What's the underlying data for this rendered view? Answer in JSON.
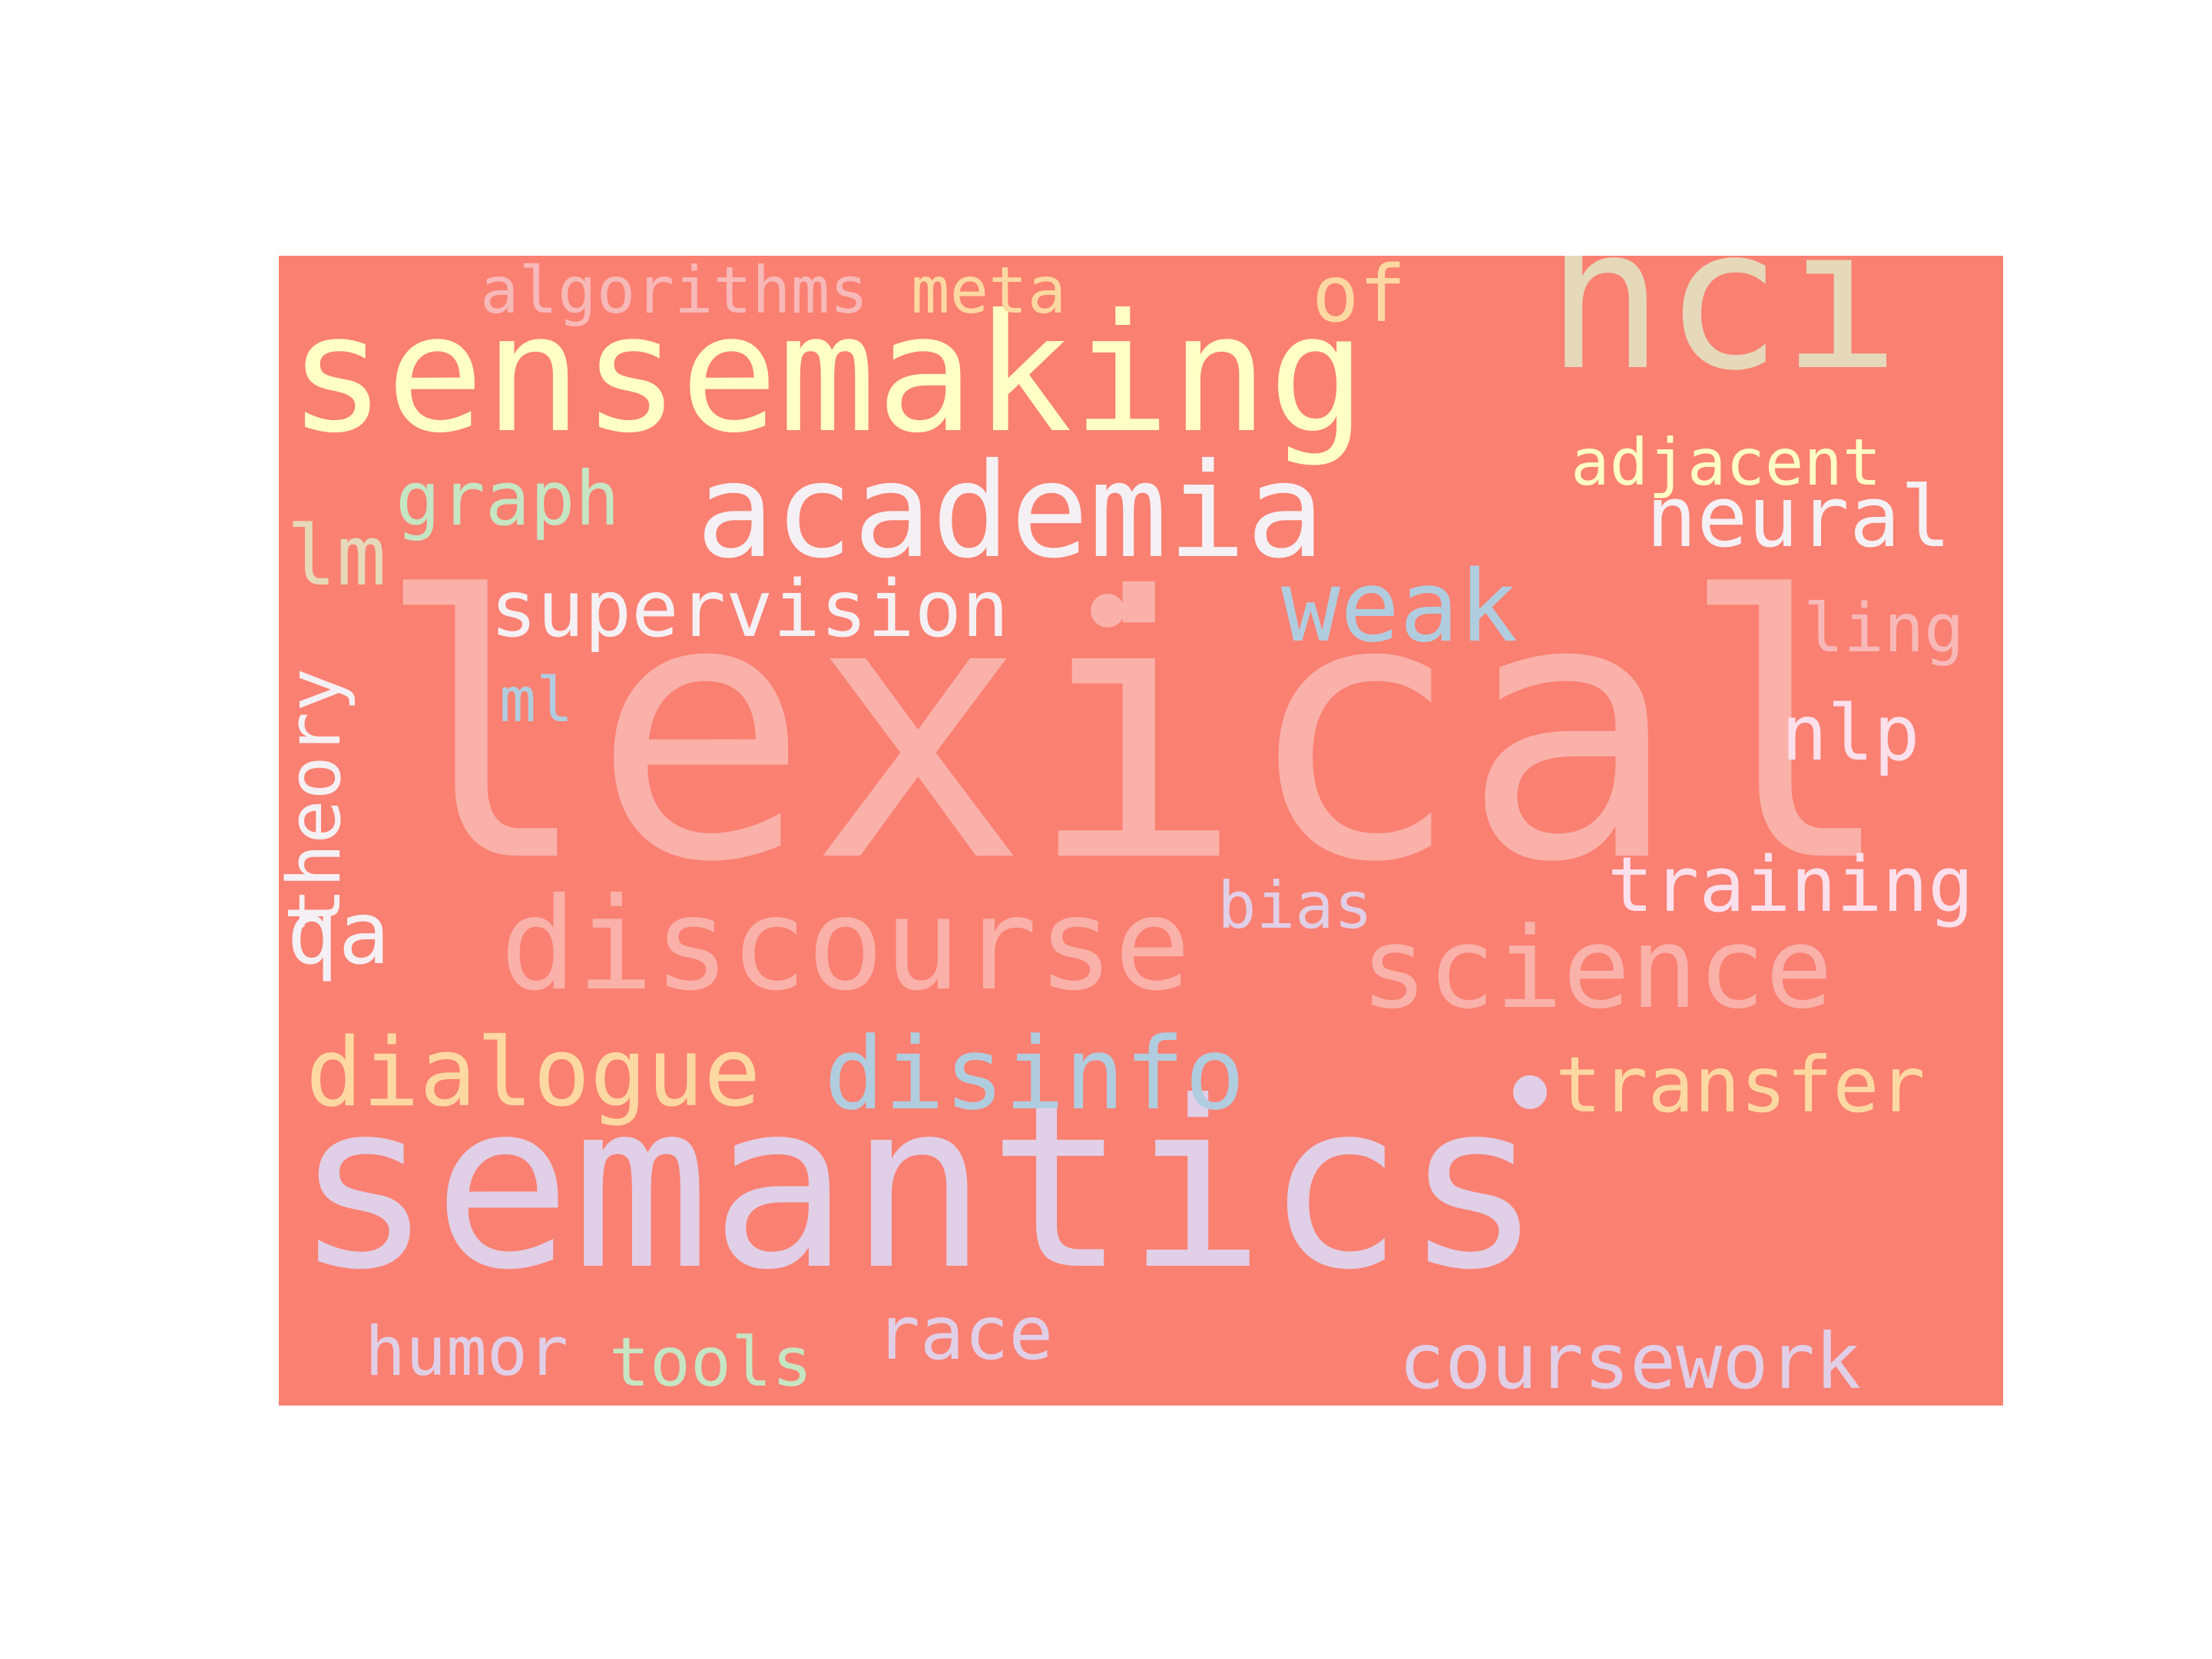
{
  "colors": {
    "background": "#fa8072",
    "palette": [
      "#ffffc6",
      "#e5d9b9",
      "#f9b1a9",
      "#f5f0f4",
      "#e0cfe6",
      "#b0cde0",
      "#fed8a1",
      "#c5e5c3",
      "#fce0ec",
      "#f7b8b8"
    ]
  },
  "words": [
    {
      "key": "lexical",
      "text": "lexical",
      "color": "#f9b1a9"
    },
    {
      "key": "semantics",
      "text": "semantics",
      "color": "#e0cfe6"
    },
    {
      "key": "sensemaking",
      "text": "sensemaking",
      "color": "#ffffc6"
    },
    {
      "key": "hci",
      "text": "hci",
      "color": "#e5d9b9"
    },
    {
      "key": "academia",
      "text": "academia",
      "color": "#f5f0f4"
    },
    {
      "key": "discourse",
      "text": "discourse",
      "color": "#f9b1a9"
    },
    {
      "key": "science",
      "text": "science",
      "color": "#f9b1a9"
    },
    {
      "key": "disinfo",
      "text": "disinfo",
      "color": "#b0cde0"
    },
    {
      "key": "dialogue",
      "text": "dialogue",
      "color": "#fed8a1"
    },
    {
      "key": "weak",
      "text": "weak",
      "color": "#b0cde0"
    },
    {
      "key": "supervision",
      "text": "supervision",
      "color": "#f5f0f4"
    },
    {
      "key": "neural",
      "text": "neural",
      "color": "#f5f0f4"
    },
    {
      "key": "transfer",
      "text": "transfer",
      "color": "#fed8a1"
    },
    {
      "key": "training",
      "text": "training",
      "color": "#fce0ec"
    },
    {
      "key": "coursework",
      "text": "coursework",
      "color": "#e0cfe6"
    },
    {
      "key": "graph",
      "text": "graph",
      "color": "#c5e5c3"
    },
    {
      "key": "adjacent",
      "text": "adjacent",
      "color": "#ffffc6"
    },
    {
      "key": "algorithms",
      "text": "algorithms",
      "color": "#f7b8b8"
    },
    {
      "key": "meta",
      "text": "meta",
      "color": "#fed8a1"
    },
    {
      "key": "of",
      "text": "of",
      "color": "#fed8a1"
    },
    {
      "key": "theory",
      "text": "theory",
      "color": "#f5f0f4"
    },
    {
      "key": "lm",
      "text": "lm",
      "color": "#e5d9b9"
    },
    {
      "key": "nlp",
      "text": "nlp",
      "color": "#fce0ec"
    },
    {
      "key": "ling",
      "text": "ling",
      "color": "#f7b8b8"
    },
    {
      "key": "ml",
      "text": "ml",
      "color": "#b0cde0"
    },
    {
      "key": "bias",
      "text": "bias",
      "color": "#e0cfe6"
    },
    {
      "key": "qa",
      "text": "qa",
      "color": "#f5f0f4"
    },
    {
      "key": "humor",
      "text": "humor",
      "color": "#e0cfe6"
    },
    {
      "key": "tools",
      "text": "tools",
      "color": "#c5e5c3"
    },
    {
      "key": "race",
      "text": "race",
      "color": "#e0cfe6"
    }
  ],
  "dots": [
    {
      "name": "dot-after-supervision",
      "color": "#f9b1a9"
    },
    {
      "name": "dot-before-transfer",
      "color": "#e0cfe6"
    }
  ]
}
